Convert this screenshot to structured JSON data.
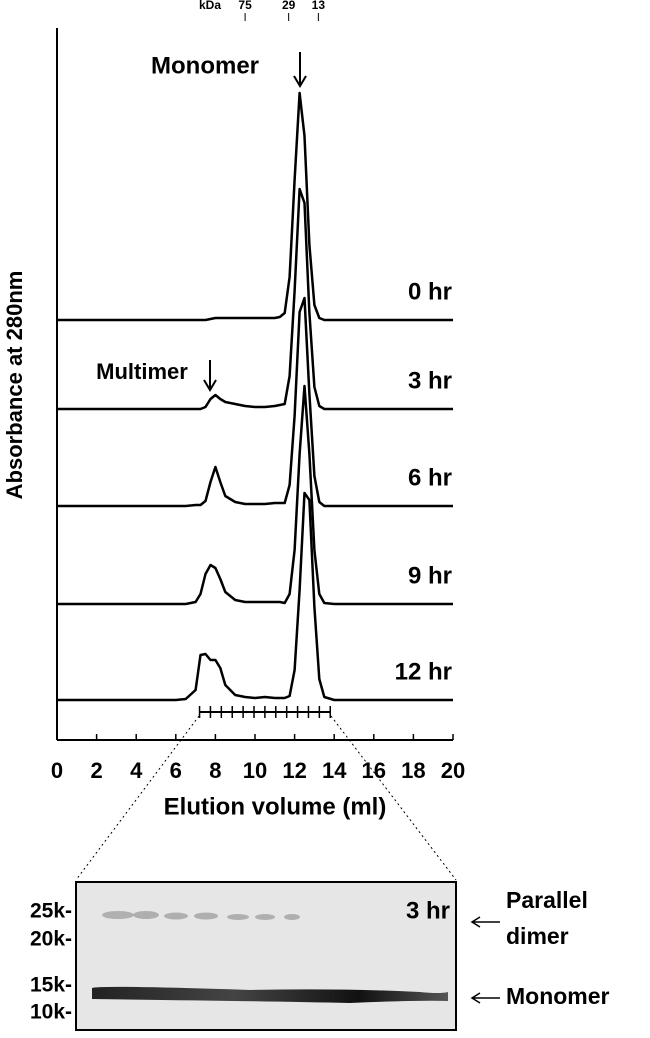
{
  "chart_data": {
    "type": "line",
    "y_label": "Absorbance at 280nm",
    "x_label": "Elution volume (ml)",
    "xlim": [
      0,
      20
    ],
    "xticks": [
      0,
      2,
      4,
      6,
      8,
      10,
      12,
      14,
      16,
      18,
      20
    ],
    "ylim": [
      0,
      2.4
    ],
    "top_axis": {
      "label": "kDa",
      "ticks": [
        {
          "value": 9.5,
          "label": "75"
        },
        {
          "value": 11.7,
          "label": "29"
        },
        {
          "value": 13.2,
          "label": "13"
        }
      ]
    },
    "fraction_ticks": [
      7.2,
      7.75,
      8.3,
      8.85,
      9.4,
      9.95,
      10.5,
      11.05,
      11.6,
      12.15,
      12.7,
      13.25,
      13.8
    ],
    "annotations": [
      "Monomer",
      "Multimer"
    ],
    "x": [
      0,
      1,
      2,
      3,
      4,
      5,
      6,
      6.5,
      7,
      7.25,
      7.5,
      7.75,
      8,
      8.25,
      8.5,
      9,
      9.5,
      10,
      10.5,
      11,
      11.25,
      11.5,
      11.75,
      12,
      12.25,
      12.5,
      12.75,
      13,
      13.25,
      13.5,
      14,
      15,
      16,
      17,
      18,
      19,
      20
    ],
    "series": [
      {
        "name": "0 hr",
        "color": "#000000",
        "values": [
          0,
          0,
          0,
          0,
          0,
          0,
          0,
          0,
          0,
          0,
          0,
          0.01,
          0.02,
          0.02,
          0.02,
          0.02,
          0.02,
          0.02,
          0.02,
          0.02,
          0.03,
          0.07,
          0.43,
          1.4,
          2.27,
          1.84,
          0.75,
          0.15,
          0.02,
          0,
          0,
          0,
          0,
          0,
          0,
          0,
          0
        ]
      },
      {
        "name": "3 hr",
        "color": "#000000",
        "values": [
          0,
          0,
          0,
          0,
          0,
          0,
          0,
          0,
          0,
          0,
          0.02,
          0.1,
          0.14,
          0.1,
          0.07,
          0.05,
          0.03,
          0.02,
          0.02,
          0.03,
          0.04,
          0.05,
          0.33,
          1.18,
          2.2,
          2.06,
          0.96,
          0.22,
          0.03,
          0,
          0,
          0,
          0,
          0,
          0,
          0,
          0
        ]
      },
      {
        "name": "6 hr",
        "color": "#000000",
        "values": [
          0,
          0,
          0,
          0,
          0,
          0,
          0,
          0,
          0.01,
          0.01,
          0.05,
          0.24,
          0.39,
          0.24,
          0.1,
          0.04,
          0.02,
          0.02,
          0.02,
          0.03,
          0.03,
          0.03,
          0.21,
          0.9,
          1.94,
          2.08,
          1.12,
          0.3,
          0.04,
          0,
          0,
          0,
          0,
          0,
          0,
          0,
          0
        ]
      },
      {
        "name": "9 hr",
        "color": "#000000",
        "values": [
          0,
          0,
          0,
          0,
          0,
          0,
          0,
          0,
          0.02,
          0.1,
          0.3,
          0.39,
          0.36,
          0.25,
          0.12,
          0.04,
          0.02,
          0.02,
          0.02,
          0.02,
          0.02,
          0.01,
          0.1,
          0.54,
          1.5,
          2.18,
          1.5,
          0.54,
          0.1,
          0.01,
          0,
          0,
          0,
          0,
          0,
          0,
          0
        ]
      },
      {
        "name": "12 hr",
        "color": "#000000",
        "values": [
          0,
          0,
          0,
          0,
          0,
          0,
          0,
          0.01,
          0.1,
          0.45,
          0.46,
          0.4,
          0.4,
          0.32,
          0.15,
          0.05,
          0.03,
          0.02,
          0.03,
          0.02,
          0.02,
          0.02,
          0.04,
          0.3,
          1.1,
          2.07,
          2.0,
          0.93,
          0.21,
          0.03,
          0,
          0,
          0,
          0,
          0,
          0,
          0
        ]
      }
    ]
  },
  "gel": {
    "marker_labels": [
      "25k-",
      "20k-",
      "15k-",
      "10k-"
    ],
    "label": "3 hr",
    "dimer_label": [
      "Parallel",
      "dimer"
    ],
    "monomer_label": "Monomer"
  }
}
